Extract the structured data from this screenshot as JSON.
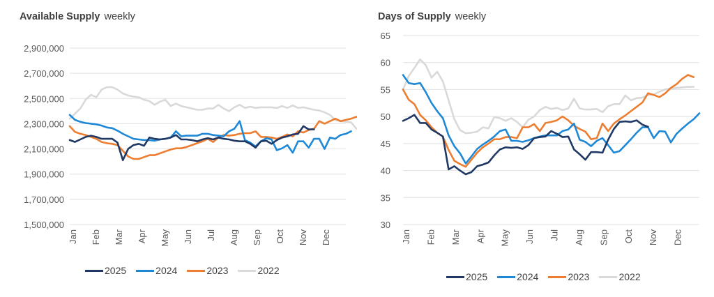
{
  "chart_data": [
    {
      "id": "left",
      "type": "line",
      "title": "Available Supply",
      "subtitle": "weekly",
      "xlabel": "",
      "ylabel": "",
      "categories": [
        "Jan",
        "Feb",
        "Mar",
        "Apr",
        "May",
        "Jun",
        "Jul",
        "Aug",
        "Sep",
        "Oct",
        "Nov",
        "Dec"
      ],
      "y_ticks": [
        "2,900,000",
        "2,700,000",
        "2,500,000",
        "2,300,000",
        "2,100,000",
        "1,900,000",
        "1,700,000",
        "1,500,000"
      ],
      "ylim": [
        1500000,
        2900000
      ],
      "grid": true,
      "legend_position": "bottom",
      "x_unit": "week",
      "series": [
        {
          "name": "2025",
          "color": "#1f3864",
          "values": [
            2170000,
            2155000,
            2175000,
            2195000,
            2205000,
            2195000,
            2180000,
            2180000,
            2180000,
            2150000,
            2010000,
            2100000,
            2130000,
            2140000,
            2125000,
            2190000,
            2180000,
            2175000,
            2180000,
            2190000,
            2210000,
            2175000,
            2175000,
            2170000,
            2160000,
            2175000,
            2185000,
            2175000,
            2190000,
            2180000,
            2175000,
            2165000,
            2160000,
            2160000,
            2140000,
            2110000,
            2160000,
            2165000,
            2140000,
            2170000,
            2190000,
            2200000,
            2215000,
            2220000,
            2280000,
            2255000,
            2255000
          ]
        },
        {
          "name": "2024",
          "color": "#1e88d6",
          "values": [
            2370000,
            2330000,
            2315000,
            2305000,
            2300000,
            2295000,
            2285000,
            2270000,
            2265000,
            2245000,
            2220000,
            2200000,
            2180000,
            2175000,
            2170000,
            2170000,
            2165000,
            2175000,
            2180000,
            2190000,
            2240000,
            2200000,
            2205000,
            2205000,
            2205000,
            2220000,
            2220000,
            2210000,
            2205000,
            2200000,
            2240000,
            2260000,
            2320000,
            2170000,
            2150000,
            2120000,
            2160000,
            2185000,
            2175000,
            2090000,
            2105000,
            2130000,
            2070000,
            2160000,
            2160000,
            2110000,
            2180000,
            2180000,
            2100000,
            2190000,
            2180000,
            2210000,
            2220000,
            2240000
          ]
        },
        {
          "name": "2023",
          "color": "#ed7d31",
          "values": [
            2280000,
            2235000,
            2220000,
            2210000,
            2195000,
            2180000,
            2155000,
            2145000,
            2140000,
            2130000,
            2085000,
            2040000,
            2020000,
            2020000,
            2035000,
            2050000,
            2050000,
            2065000,
            2080000,
            2095000,
            2105000,
            2105000,
            2115000,
            2130000,
            2145000,
            2160000,
            2180000,
            2155000,
            2190000,
            2210000,
            2205000,
            2210000,
            2220000,
            2225000,
            2225000,
            2240000,
            2195000,
            2195000,
            2190000,
            2180000,
            2195000,
            2215000,
            2200000,
            2240000,
            2230000,
            2250000,
            2260000,
            2320000,
            2300000,
            2320000,
            2340000,
            2320000,
            2330000,
            2340000,
            2355000,
            2350000
          ]
        },
        {
          "name": "2022",
          "color": "#d9d9d9",
          "values": [
            2340000,
            2380000,
            2420000,
            2490000,
            2530000,
            2510000,
            2570000,
            2590000,
            2590000,
            2570000,
            2540000,
            2525000,
            2515000,
            2510000,
            2490000,
            2480000,
            2450000,
            2475000,
            2490000,
            2440000,
            2460000,
            2440000,
            2430000,
            2420000,
            2410000,
            2410000,
            2420000,
            2420000,
            2450000,
            2420000,
            2400000,
            2430000,
            2450000,
            2425000,
            2435000,
            2425000,
            2430000,
            2430000,
            2430000,
            2425000,
            2440000,
            2425000,
            2445000,
            2425000,
            2430000,
            2420000,
            2410000,
            2405000,
            2390000,
            2370000,
            2330000,
            2320000,
            2315000,
            2310000,
            2260000
          ]
        }
      ]
    },
    {
      "id": "right",
      "type": "line",
      "title": "Days of Supply",
      "subtitle": "weekly",
      "xlabel": "",
      "ylabel": "",
      "categories": [
        "Jan",
        "Feb",
        "Mar",
        "Apr",
        "May",
        "Jun",
        "Jul",
        "Aug",
        "Sep",
        "Oct",
        "Nov",
        "Dec"
      ],
      "y_ticks": [
        "65",
        "60",
        "55",
        "50",
        "45",
        "40",
        "35",
        "30"
      ],
      "ylim": [
        30,
        65
      ],
      "grid": true,
      "legend_position": "bottom",
      "x_unit": "week",
      "series": [
        {
          "name": "2025",
          "color": "#1f3864",
          "values": [
            49.2,
            49.7,
            50.3,
            48.8,
            48.8,
            47.6,
            47.0,
            46.3,
            40.2,
            40.8,
            40.0,
            39.3,
            39.7,
            40.8,
            41.1,
            41.5,
            42.8,
            43.9,
            44.3,
            44.2,
            44.3,
            44.0,
            44.7,
            46.0,
            46.2,
            46.3,
            47.3,
            46.8,
            46.2,
            46.3,
            43.9,
            43.0,
            42.0,
            43.4,
            43.4,
            43.3,
            45.7,
            47.7,
            49.0,
            49.1,
            49.0,
            49.3,
            48.5,
            48.1
          ]
        },
        {
          "name": "2024",
          "color": "#1e88d6",
          "values": [
            57.7,
            56.2,
            56.0,
            56.2,
            54.5,
            52.5,
            51.0,
            49.7,
            46.5,
            44.5,
            43.2,
            41.3,
            42.6,
            44.0,
            44.8,
            45.5,
            46.3,
            47.3,
            47.6,
            45.5,
            45.5,
            45.3,
            45.6,
            46.0,
            46.3,
            46.5,
            46.5,
            46.5,
            47.3,
            47.6,
            48.7,
            45.7,
            45.3,
            44.5,
            45.5,
            46.0,
            44.7,
            43.3,
            43.6,
            44.7,
            45.8,
            47.0,
            48.0,
            48.0,
            46.0,
            47.3,
            47.2,
            45.2,
            46.8,
            47.8,
            48.7,
            49.5,
            50.6
          ]
        },
        {
          "name": "2023",
          "color": "#ed7d31",
          "values": [
            55.0,
            53.1,
            52.3,
            50.3,
            49.3,
            48.0,
            47.0,
            46.3,
            43.8,
            41.8,
            41.2,
            40.7,
            42.0,
            43.3,
            44.3,
            45.0,
            45.8,
            45.8,
            46.2,
            46.2,
            46.0,
            48.0,
            48.0,
            48.6,
            47.3,
            48.8,
            49.0,
            49.3,
            50.0,
            49.3,
            48.3,
            47.7,
            47.2,
            45.8,
            46.0,
            48.7,
            47.3,
            48.7,
            49.5,
            50.2,
            51.0,
            51.8,
            52.6,
            54.3,
            54.0,
            53.6,
            54.3,
            55.3,
            56.0,
            57.0,
            57.7,
            57.3
          ]
        },
        {
          "name": "2022",
          "color": "#d9d9d9",
          "values": [
            55.0,
            57.5,
            59.0,
            60.6,
            59.5,
            57.2,
            58.3,
            56.5,
            53.0,
            49.5,
            47.5,
            46.9,
            47.0,
            47.2,
            48.0,
            47.8,
            49.9,
            49.7,
            49.2,
            49.7,
            49.0,
            48.0,
            49.4,
            50.0,
            51.2,
            51.8,
            51.4,
            51.6,
            51.2,
            51.5,
            53.3,
            51.5,
            51.3,
            51.3,
            51.4,
            50.8,
            51.9,
            52.3,
            52.3,
            53.9,
            53.0,
            53.4,
            53.5,
            54.0,
            54.1,
            54.6,
            55.0,
            55.2,
            55.3,
            55.4,
            55.5,
            55.5
          ]
        }
      ]
    }
  ]
}
